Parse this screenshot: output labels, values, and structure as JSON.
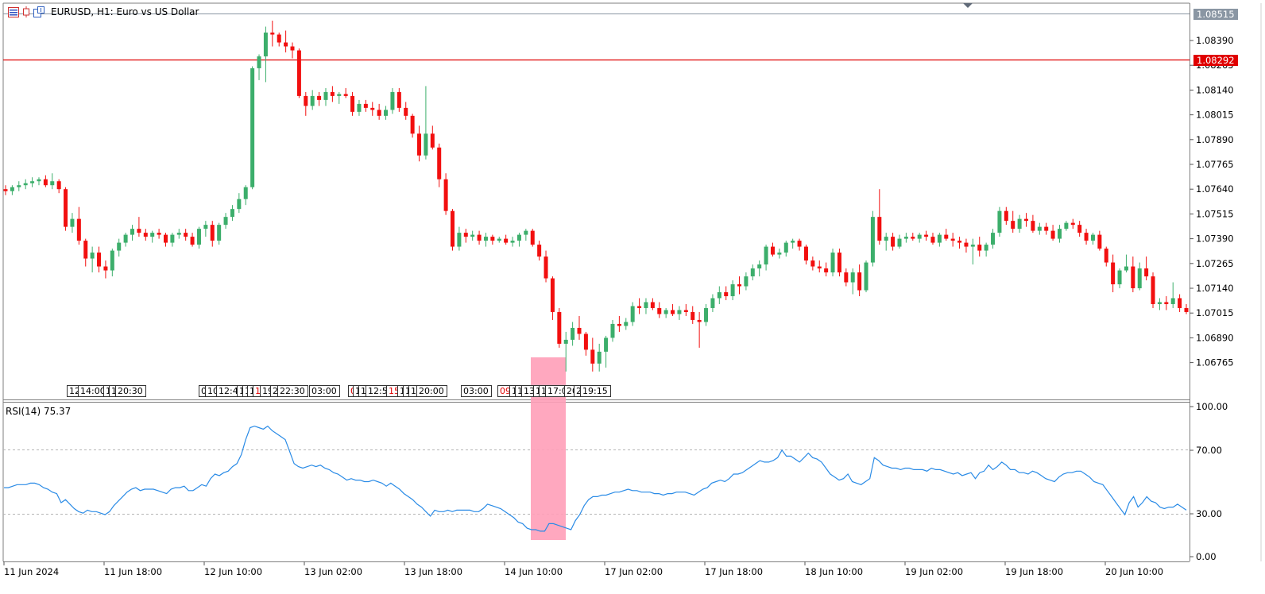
{
  "title": {
    "symbol": "EURUSD, H1:",
    "description": "Euro vs US Dollar",
    "icons": [
      "chart-window-icon",
      "candle-indicator-icon",
      "chart-settings-icon"
    ]
  },
  "colors": {
    "bull": "#26a69a",
    "bull_real": "#3cae6b",
    "bear": "#f20f0f",
    "price_line": "#e00000",
    "rsi_line": "#2a8be6",
    "highlight": "#ff9fb8",
    "grid": "#c8c8c8"
  },
  "price_axis": {
    "labels": [
      "1.08390",
      "1.08265",
      "1.08140",
      "1.08015",
      "1.07890",
      "1.07765",
      "1.07640",
      "1.07515",
      "1.07390",
      "1.07265",
      "1.07140",
      "1.07015",
      "1.06890",
      "1.06765"
    ],
    "current_bid": "1.08515",
    "horizontal_line": "1.08292"
  },
  "rsi_panel": {
    "title": "RSI(14) 75.37",
    "levels": [
      "100.00",
      "70.00",
      "30.00",
      "0.00"
    ]
  },
  "time_axis": {
    "labels": [
      "11 Jun 2024",
      "11 Jun 18:00",
      "12 Jun 10:00",
      "13 Jun 02:00",
      "13 Jun 18:00",
      "14 Jun 10:00",
      "17 Jun 02:00",
      "17 Jun 18:00",
      "18 Jun 10:00",
      "19 Jun 02:00",
      "19 Jun 18:00",
      "20 Jun 10:00"
    ]
  },
  "trade_labels": [
    {
      "text": "12",
      "sell": false
    },
    {
      "text": "14:00",
      "sell": false
    },
    {
      "text": "1",
      "sell": false
    },
    {
      "text": "1",
      "sell": false
    },
    {
      "text": "20:30",
      "sell": false
    },
    {
      "text": "0",
      "sell": false
    },
    {
      "text": "10",
      "sell": false
    },
    {
      "text": "12:4",
      "sell": false
    },
    {
      "text": "1",
      "sell": false
    },
    {
      "text": "1",
      "sell": false
    },
    {
      "text": "1",
      "sell": false
    },
    {
      "text": "1",
      "sell": true
    },
    {
      "text": "19",
      "sell": false
    },
    {
      "text": "2",
      "sell": false
    },
    {
      "text": "22:30",
      "sell": false
    },
    {
      "text": "03:00",
      "sell": false
    },
    {
      "text": "0",
      "sell": true
    },
    {
      "text": "1",
      "sell": false
    },
    {
      "text": "1",
      "sell": false
    },
    {
      "text": "12:5",
      "sell": false
    },
    {
      "text": "15",
      "sell": true
    },
    {
      "text": "1",
      "sell": false
    },
    {
      "text": "1",
      "sell": false
    },
    {
      "text": "1",
      "sell": false
    },
    {
      "text": "20:00",
      "sell": false
    },
    {
      "text": "03:00",
      "sell": false
    },
    {
      "text": "09",
      "sell": true
    },
    {
      "text": "1",
      "sell": false
    },
    {
      "text": "1",
      "sell": false
    },
    {
      "text": "13",
      "sell": false
    },
    {
      "text": "1",
      "sell": false
    },
    {
      "text": "1",
      "sell": false
    },
    {
      "text": "17:0",
      "sell": false
    },
    {
      "text": "20",
      "sell": false
    },
    {
      "text": "2",
      "sell": false
    },
    {
      "text": "19:15",
      "sell": false
    }
  ],
  "candles": [
    [
      1.0764,
      1.0766,
      1.0761,
      1.0763
    ],
    [
      1.0763,
      1.0766,
      1.0761,
      1.0765
    ],
    [
      1.0765,
      1.0768,
      1.0763,
      1.0766
    ],
    [
      1.0766,
      1.0769,
      1.0764,
      1.0767
    ],
    [
      1.0767,
      1.077,
      1.0765,
      1.0768
    ],
    [
      1.0768,
      1.077,
      1.0766,
      1.0769
    ],
    [
      1.0769,
      1.0771,
      1.0765,
      1.0766
    ],
    [
      1.0766,
      1.0772,
      1.0764,
      1.0768
    ],
    [
      1.0768,
      1.0769,
      1.0762,
      1.0764
    ],
    [
      1.0764,
      1.0765,
      1.0743,
      1.0745
    ],
    [
      1.0745,
      1.0752,
      1.0742,
      1.0749
    ],
    [
      1.0749,
      1.0755,
      1.0736,
      1.0738
    ],
    [
      1.0738,
      1.0739,
      1.0725,
      1.0729
    ],
    [
      1.0729,
      1.0735,
      1.0722,
      1.0732
    ],
    [
      1.0732,
      1.0735,
      1.0722,
      1.0725
    ],
    [
      1.0725,
      1.0728,
      1.0719,
      1.0723
    ],
    [
      1.0723,
      1.0734,
      1.072,
      1.0733
    ],
    [
      1.0733,
      1.0739,
      1.073,
      1.0737
    ],
    [
      1.0737,
      1.0742,
      1.0735,
      1.0741
    ],
    [
      1.0741,
      1.0746,
      1.0738,
      1.0744
    ],
    [
      1.0744,
      1.075,
      1.074,
      1.0742
    ],
    [
      1.0742,
      1.0744,
      1.0738,
      1.074
    ],
    [
      1.074,
      1.0743,
      1.0737,
      1.0742
    ],
    [
      1.0742,
      1.0744,
      1.0739,
      1.0741
    ],
    [
      1.0741,
      1.0742,
      1.0735,
      1.0737
    ],
    [
      1.0737,
      1.0742,
      1.0735,
      1.0741
    ],
    [
      1.0741,
      1.0744,
      1.0739,
      1.0742
    ],
    [
      1.0742,
      1.0744,
      1.0738,
      1.074
    ],
    [
      1.074,
      1.0742,
      1.0735,
      1.0736
    ],
    [
      1.0736,
      1.0745,
      1.0734,
      1.0744
    ],
    [
      1.0744,
      1.0748,
      1.074,
      1.0746
    ],
    [
      1.0746,
      1.0748,
      1.0735,
      1.0738
    ],
    [
      1.0738,
      1.0747,
      1.0736,
      1.0746
    ],
    [
      1.0746,
      1.0752,
      1.0744,
      1.075
    ],
    [
      1.075,
      1.0756,
      1.0748,
      1.0754
    ],
    [
      1.0754,
      1.0762,
      1.0752,
      1.0759
    ],
    [
      1.0759,
      1.0766,
      1.0756,
      1.0765
    ],
    [
      1.0765,
      1.0826,
      1.0764,
      1.0825
    ],
    [
      1.0825,
      1.0832,
      1.0819,
      1.0831
    ],
    [
      1.0831,
      1.0846,
      1.0818,
      1.0843
    ],
    [
      1.0843,
      1.0849,
      1.0836,
      1.0842
    ],
    [
      1.0842,
      1.0843,
      1.0836,
      1.0838
    ],
    [
      1.0838,
      1.0844,
      1.0833,
      1.0836
    ],
    [
      1.0836,
      1.0838,
      1.083,
      1.0834
    ],
    [
      1.0834,
      1.0835,
      1.081,
      1.0811
    ],
    [
      1.0811,
      1.0813,
      1.0801,
      1.0806
    ],
    [
      1.0806,
      1.0814,
      1.0804,
      1.0811
    ],
    [
      1.0811,
      1.0813,
      1.0806,
      1.0809
    ],
    [
      1.0809,
      1.0815,
      1.0806,
      1.0813
    ],
    [
      1.0813,
      1.0816,
      1.0808,
      1.0811
    ],
    [
      1.0811,
      1.0813,
      1.0807,
      1.0812
    ],
    [
      1.0812,
      1.0815,
      1.081,
      1.0811
    ],
    [
      1.0811,
      1.0813,
      1.0801,
      1.0803
    ],
    [
      1.0803,
      1.0809,
      1.0801,
      1.0807
    ],
    [
      1.0807,
      1.0809,
      1.0803,
      1.0805
    ],
    [
      1.0805,
      1.0808,
      1.0801,
      1.0804
    ],
    [
      1.0804,
      1.0807,
      1.0799,
      1.0801
    ],
    [
      1.0801,
      1.0806,
      1.0799,
      1.0804
    ],
    [
      1.0804,
      1.0815,
      1.0802,
      1.0813
    ],
    [
      1.0813,
      1.0815,
      1.0803,
      1.0805
    ],
    [
      1.0805,
      1.0808,
      1.0799,
      1.0801
    ],
    [
      1.0801,
      1.0802,
      1.079,
      1.0792
    ],
    [
      1.0792,
      1.0796,
      1.0778,
      1.0781
    ],
    [
      1.0781,
      1.0816,
      1.0779,
      1.0792
    ],
    [
      1.0792,
      1.0796,
      1.0784,
      1.0785
    ],
    [
      1.0785,
      1.0787,
      1.0765,
      1.0769
    ],
    [
      1.0769,
      1.0772,
      1.0751,
      1.0753
    ],
    [
      1.0753,
      1.0754,
      1.0733,
      1.0735
    ],
    [
      1.0735,
      1.0745,
      1.0733,
      1.0742
    ],
    [
      1.0742,
      1.0744,
      1.0737,
      1.074
    ],
    [
      1.074,
      1.0743,
      1.0738,
      1.0741
    ],
    [
      1.0741,
      1.0743,
      1.0736,
      1.0738
    ],
    [
      1.0738,
      1.0742,
      1.0735,
      1.074
    ],
    [
      1.074,
      1.0741,
      1.0736,
      1.0738
    ],
    [
      1.0738,
      1.074,
      1.0737,
      1.0739
    ],
    [
      1.0739,
      1.0741,
      1.0736,
      1.0737
    ],
    [
      1.0737,
      1.074,
      1.0735,
      1.0738
    ],
    [
      1.0738,
      1.0742,
      1.0735,
      1.0741
    ],
    [
      1.0741,
      1.0744,
      1.0738,
      1.0743
    ],
    [
      1.0743,
      1.0744,
      1.0735,
      1.0736
    ],
    [
      1.0736,
      1.0738,
      1.0728,
      1.073
    ],
    [
      1.073,
      1.0733,
      1.0717,
      1.0719
    ],
    [
      1.0719,
      1.072,
      1.0698,
      1.0702
    ],
    [
      1.0702,
      1.0704,
      1.0684,
      1.0686
    ],
    [
      1.0686,
      1.0692,
      1.0672,
      1.0688
    ],
    [
      1.0688,
      1.0697,
      1.0685,
      1.0694
    ],
    [
      1.0694,
      1.07,
      1.0688,
      1.0691
    ],
    [
      1.0691,
      1.0692,
      1.068,
      1.0683
    ],
    [
      1.0683,
      1.0689,
      1.0672,
      1.0676
    ],
    [
      1.0676,
      1.0686,
      1.0672,
      1.0682
    ],
    [
      1.0682,
      1.069,
      1.0674,
      1.0689
    ],
    [
      1.0689,
      1.0698,
      1.0687,
      1.0696
    ],
    [
      1.0696,
      1.07,
      1.0692,
      1.0695
    ],
    [
      1.0695,
      1.0699,
      1.0693,
      1.0697
    ],
    [
      1.0697,
      1.0707,
      1.0695,
      1.0705
    ],
    [
      1.0705,
      1.0709,
      1.0701,
      1.0704
    ],
    [
      1.0704,
      1.0709,
      1.0701,
      1.0707
    ],
    [
      1.0707,
      1.0709,
      1.0703,
      1.0704
    ],
    [
      1.0704,
      1.0707,
      1.0699,
      1.0701
    ],
    [
      1.0701,
      1.0704,
      1.0699,
      1.0703
    ],
    [
      1.0703,
      1.0706,
      1.07,
      1.0701
    ],
    [
      1.0701,
      1.0705,
      1.0698,
      1.0703
    ],
    [
      1.0703,
      1.0706,
      1.07,
      1.0702
    ],
    [
      1.0702,
      1.0705,
      1.0696,
      1.0698
    ],
    [
      1.0698,
      1.0702,
      1.0684,
      1.0697
    ],
    [
      1.0697,
      1.0706,
      1.0695,
      1.0704
    ],
    [
      1.0704,
      1.0711,
      1.0702,
      1.0709
    ],
    [
      1.0709,
      1.0715,
      1.0706,
      1.0712
    ],
    [
      1.0712,
      1.0715,
      1.0708,
      1.071
    ],
    [
      1.071,
      1.0718,
      1.0708,
      1.0716
    ],
    [
      1.0716,
      1.072,
      1.0711,
      1.0715
    ],
    [
      1.0715,
      1.0722,
      1.0713,
      1.072
    ],
    [
      1.072,
      1.0726,
      1.0718,
      1.0724
    ],
    [
      1.0724,
      1.0728,
      1.072,
      1.0726
    ],
    [
      1.0726,
      1.0736,
      1.0723,
      1.0735
    ],
    [
      1.0735,
      1.0737,
      1.073,
      1.0731
    ],
    [
      1.0731,
      1.0734,
      1.0729,
      1.0732
    ],
    [
      1.0732,
      1.0738,
      1.073,
      1.0737
    ],
    [
      1.0737,
      1.0739,
      1.0734,
      1.0738
    ],
    [
      1.0738,
      1.0739,
      1.0733,
      1.0735
    ],
    [
      1.0735,
      1.0736,
      1.0726,
      1.0728
    ],
    [
      1.0728,
      1.073,
      1.0723,
      1.0725
    ],
    [
      1.0725,
      1.0728,
      1.0722,
      1.0724
    ],
    [
      1.0724,
      1.0727,
      1.072,
      1.0722
    ],
    [
      1.0722,
      1.0734,
      1.072,
      1.0732
    ],
    [
      1.0732,
      1.0734,
      1.072,
      1.0722
    ],
    [
      1.0722,
      1.0724,
      1.0715,
      1.0717
    ],
    [
      1.0717,
      1.0724,
      1.0711,
      1.0722
    ],
    [
      1.0722,
      1.0726,
      1.071,
      1.0713
    ],
    [
      1.0713,
      1.0728,
      1.0712,
      1.0727
    ],
    [
      1.0727,
      1.0753,
      1.0725,
      1.075
    ],
    [
      1.075,
      1.0764,
      1.0736,
      1.0738
    ],
    [
      1.0738,
      1.0742,
      1.0733,
      1.074
    ],
    [
      1.074,
      1.0742,
      1.0733,
      1.0735
    ],
    [
      1.0735,
      1.0741,
      1.0734,
      1.0739
    ],
    [
      1.0739,
      1.0742,
      1.0737,
      1.074
    ],
    [
      1.074,
      1.0742,
      1.0738,
      1.0739
    ],
    [
      1.0739,
      1.0742,
      1.0737,
      1.0741
    ],
    [
      1.0741,
      1.0743,
      1.0738,
      1.074
    ],
    [
      1.074,
      1.0742,
      1.0736,
      1.0737
    ],
    [
      1.0737,
      1.0742,
      1.0735,
      1.0741
    ],
    [
      1.0741,
      1.0744,
      1.0738,
      1.0739
    ],
    [
      1.0739,
      1.0742,
      1.0735,
      1.0738
    ],
    [
      1.0738,
      1.074,
      1.0734,
      1.0737
    ],
    [
      1.0737,
      1.0739,
      1.0732,
      1.0735
    ],
    [
      1.0735,
      1.0739,
      1.0726,
      1.0736
    ],
    [
      1.0736,
      1.074,
      1.073,
      1.0733
    ],
    [
      1.0733,
      1.0737,
      1.073,
      1.0736
    ],
    [
      1.0736,
      1.0744,
      1.0734,
      1.0742
    ],
    [
      1.0742,
      1.0755,
      1.074,
      1.0753
    ],
    [
      1.0753,
      1.0755,
      1.0746,
      1.0748
    ],
    [
      1.0748,
      1.0753,
      1.0742,
      1.0744
    ],
    [
      1.0744,
      1.0751,
      1.0742,
      1.0749
    ],
    [
      1.0749,
      1.0752,
      1.0745,
      1.0748
    ],
    [
      1.0748,
      1.0751,
      1.0742,
      1.0743
    ],
    [
      1.0743,
      1.0747,
      1.0741,
      1.0745
    ],
    [
      1.0745,
      1.0747,
      1.0741,
      1.0743
    ],
    [
      1.0743,
      1.0746,
      1.0738,
      1.0739
    ],
    [
      1.0739,
      1.0746,
      1.0737,
      1.0744
    ],
    [
      1.0744,
      1.0748,
      1.0743,
      1.0747
    ],
    [
      1.0747,
      1.0749,
      1.0744,
      1.0746
    ],
    [
      1.0746,
      1.0748,
      1.074,
      1.0742
    ],
    [
      1.0742,
      1.0744,
      1.0736,
      1.0738
    ],
    [
      1.0738,
      1.0742,
      1.0736,
      1.0741
    ],
    [
      1.0741,
      1.0743,
      1.0733,
      1.0734
    ],
    [
      1.0734,
      1.0735,
      1.0725,
      1.0727
    ],
    [
      1.0727,
      1.0731,
      1.0712,
      1.0716
    ],
    [
      1.0716,
      1.0724,
      1.0714,
      1.0723
    ],
    [
      1.0723,
      1.0731,
      1.0722,
      1.0725
    ],
    [
      1.0725,
      1.073,
      1.0712,
      1.0714
    ],
    [
      1.0714,
      1.0727,
      1.0713,
      1.0724
    ],
    [
      1.0724,
      1.073,
      1.0718,
      1.072
    ],
    [
      1.072,
      1.0722,
      1.0704,
      1.0706
    ],
    [
      1.0706,
      1.0709,
      1.0703,
      1.0707
    ],
    [
      1.0707,
      1.071,
      1.0703,
      1.0706
    ],
    [
      1.0706,
      1.0717,
      1.0704,
      1.0709
    ],
    [
      1.0709,
      1.0711,
      1.0702,
      1.0704
    ],
    [
      1.0704,
      1.0706,
      1.0701,
      1.0702
    ]
  ],
  "rsi": [
    46,
    46,
    47,
    48,
    48,
    48,
    49,
    49,
    48,
    46,
    45,
    43,
    42,
    36,
    38,
    35,
    32,
    30,
    29,
    31,
    30,
    30,
    29,
    28,
    30,
    34,
    37,
    40,
    43,
    45,
    46,
    44,
    45,
    45,
    45,
    44,
    43,
    42,
    45,
    46,
    46,
    47,
    44,
    44,
    46,
    48,
    47,
    52,
    55,
    54,
    56,
    57,
    60,
    62,
    68,
    78,
    86,
    87,
    86,
    85,
    87,
    84,
    82,
    80,
    78,
    70,
    62,
    60,
    59,
    60,
    61,
    60,
    61,
    59,
    58,
    56,
    55,
    53,
    51,
    52,
    51,
    51,
    50,
    50,
    51,
    50,
    49,
    47,
    49,
    47,
    45,
    42,
    40,
    38,
    35,
    33,
    30,
    27,
    31,
    30,
    30,
    31,
    30,
    31,
    31,
    31,
    31,
    30,
    30,
    32,
    35,
    34,
    33,
    32,
    30,
    28,
    26,
    23,
    22,
    19,
    18,
    18,
    17,
    17,
    22,
    22,
    21,
    20,
    19,
    18,
    24,
    28,
    34,
    38,
    40,
    40,
    41,
    41,
    42,
    43,
    43,
    44,
    45,
    44,
    44,
    43,
    43,
    43,
    42,
    42,
    41,
    42,
    42,
    43,
    43,
    43,
    42,
    41,
    43,
    45,
    46,
    49,
    50,
    51,
    50,
    52,
    55,
    55,
    56,
    58,
    60,
    62,
    64,
    63,
    63,
    64,
    66,
    71,
    67,
    67,
    65,
    63,
    66,
    69,
    66,
    65,
    63,
    59,
    55,
    53,
    51,
    52,
    55,
    50,
    49,
    48,
    50,
    52,
    66,
    64,
    61,
    60,
    59,
    59,
    58,
    59,
    59,
    58,
    58,
    58,
    57,
    59,
    58,
    58,
    57,
    56,
    55,
    56,
    54,
    55,
    56,
    52,
    56,
    57,
    61,
    58,
    60,
    63,
    61,
    58,
    58,
    56,
    56,
    55,
    57,
    56,
    54,
    52,
    51,
    50,
    53,
    55,
    56,
    56,
    57,
    57,
    55,
    53,
    50,
    49,
    48,
    44,
    40,
    36,
    32,
    28,
    36,
    40,
    33,
    36,
    40,
    37,
    36,
    33,
    32,
    33,
    33,
    35,
    33,
    31
  ]
}
